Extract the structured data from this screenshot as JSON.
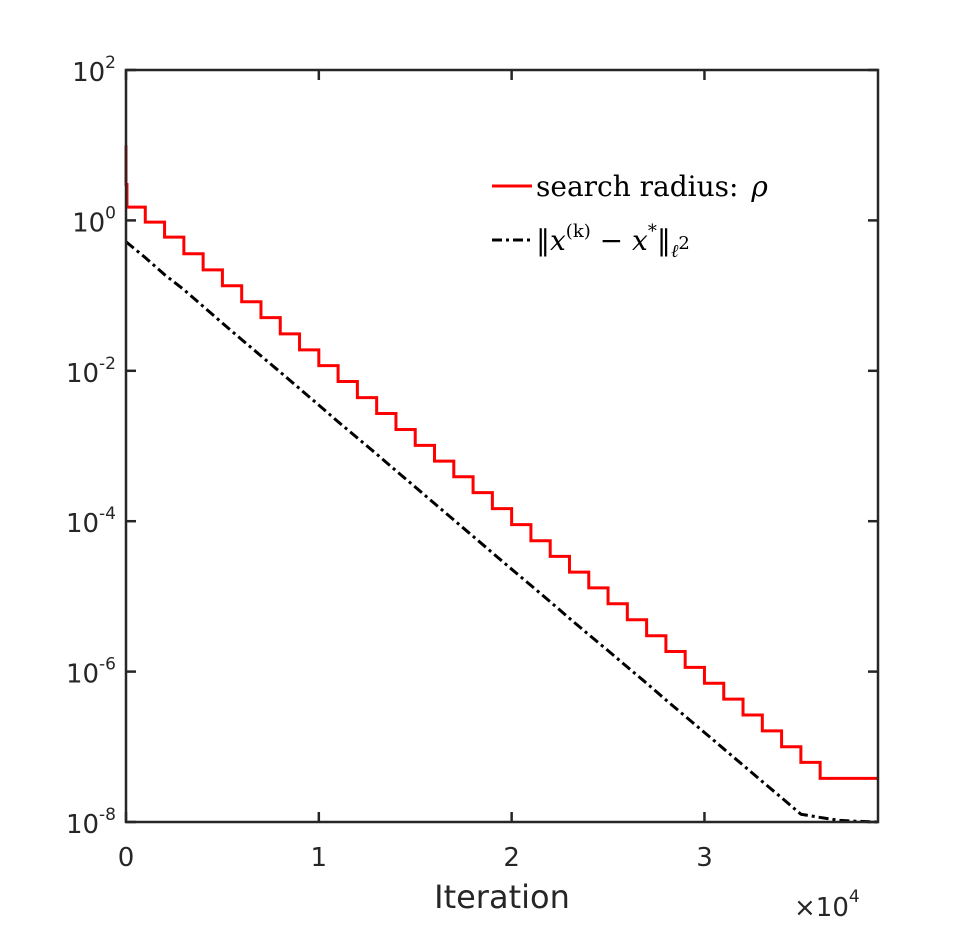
{
  "chart_data": {
    "type": "line",
    "xlabel": "Iteration",
    "ylabel": "",
    "x_multiplier": {
      "times": "×",
      "base": "10",
      "exp": "4"
    },
    "xlim": [
      0,
      39000
    ],
    "ylim": [
      1e-08,
      100
    ],
    "yscale": "log",
    "x_ticks": [
      {
        "value": 0,
        "label": "0"
      },
      {
        "value": 10000,
        "label": "1"
      },
      {
        "value": 20000,
        "label": "2"
      },
      {
        "value": 30000,
        "label": "3"
      }
    ],
    "y_ticks": [
      {
        "value": 100,
        "base": "10",
        "exp": "2"
      },
      {
        "value": 1,
        "base": "10",
        "exp": "0"
      },
      {
        "value": 0.01,
        "base": "10",
        "exp": "-2"
      },
      {
        "value": 0.0001,
        "base": "10",
        "exp": "-4"
      },
      {
        "value": 1e-06,
        "base": "10",
        "exp": "-6"
      },
      {
        "value": 1e-08,
        "base": "10",
        "exp": "-8"
      }
    ],
    "grid": false,
    "legend_position": "top-right",
    "series": [
      {
        "name": "search radius: ρ",
        "legend_text": "search radius: ",
        "legend_symbol": "ρ",
        "color": "#ff0000",
        "style": "solid",
        "step": true,
        "x": [
          0,
          0,
          50,
          1000,
          2000,
          3000,
          4000,
          5000,
          6000,
          7000,
          8000,
          9000,
          10000,
          11000,
          12000,
          13000,
          14000,
          15000,
          16000,
          17000,
          18000,
          19000,
          20000,
          21000,
          22000,
          23000,
          24000,
          25000,
          26000,
          27000,
          28000,
          29000,
          30000,
          31000,
          32000,
          33000,
          34000,
          35000,
          36000,
          37000,
          38000,
          39000
        ],
        "y": [
          10,
          3,
          1.5,
          0.95,
          0.6,
          0.36,
          0.22,
          0.135,
          0.083,
          0.051,
          0.031,
          0.019,
          0.0117,
          0.0072,
          0.0044,
          0.0027,
          0.00166,
          0.00102,
          0.00063,
          0.00039,
          0.00024,
          0.000147,
          9e-05,
          5.5e-05,
          3.4e-05,
          2.1e-05,
          1.3e-05,
          8e-06,
          4.9e-06,
          3e-06,
          1.85e-06,
          1.14e-06,
          7e-07,
          4.3e-07,
          2.65e-07,
          1.63e-07,
          1e-07,
          6.2e-08,
          3.8e-08,
          3.8e-08,
          3.8e-08,
          3.8e-08
        ]
      },
      {
        "name_parts": {
          "norm_open": "‖x",
          "sup": "(k)",
          "mid": " − x",
          "star": "*",
          "norm_close": "‖",
          "sub": "ℓ",
          "sub_sup": "2"
        },
        "color": "#000000",
        "style": "dashdot",
        "step": false,
        "x": [
          0,
          1000,
          2000,
          3000,
          4000,
          5000,
          6000,
          7000,
          8000,
          9000,
          10000,
          11000,
          12000,
          13000,
          14000,
          15000,
          16000,
          17000,
          18000,
          19000,
          20000,
          21000,
          22000,
          23000,
          24000,
          25000,
          26000,
          27000,
          28000,
          29000,
          30000,
          31000,
          32000,
          33000,
          34000,
          35000,
          36000,
          37000,
          38000,
          39000
        ],
        "y": [
          0.52,
          0.32,
          0.19,
          0.12,
          0.072,
          0.043,
          0.026,
          0.0158,
          0.0096,
          0.0058,
          0.0035,
          0.0021,
          0.00128,
          0.00078,
          0.00047,
          0.000285,
          0.000172,
          0.000104,
          6.3e-05,
          3.8e-05,
          2.3e-05,
          1.4e-05,
          8.5e-06,
          5.1e-06,
          3.1e-06,
          1.9e-06,
          1.15e-06,
          7e-07,
          4.2e-07,
          2.55e-07,
          1.55e-07,
          9.4e-08,
          5.7e-08,
          3.45e-08,
          2.1e-08,
          1.27e-08,
          1.15e-08,
          1.05e-08,
          1.02e-08,
          1e-08
        ]
      }
    ]
  }
}
